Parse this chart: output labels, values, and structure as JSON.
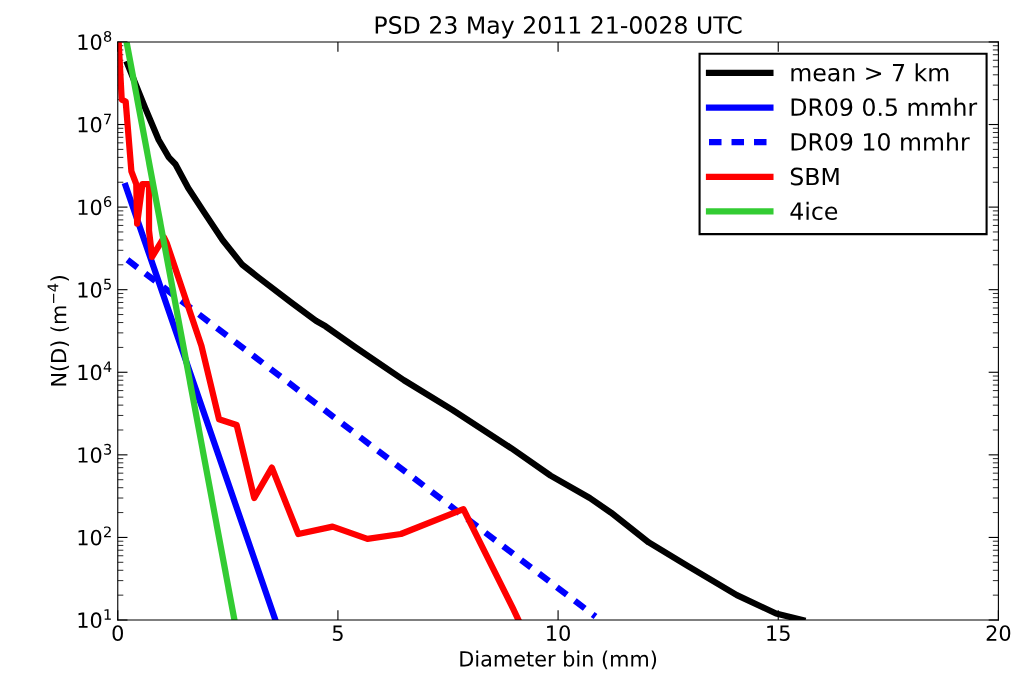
{
  "chart_data": {
    "type": "line",
    "title": "PSD 23 May 2011 21-0028 UTC",
    "xlabel": "Diameter bin (mm)",
    "ylabel": "N(D) (m$^{−4}$)",
    "log": "y",
    "xlim": [
      0,
      20
    ],
    "xticks": [
      0,
      5,
      10,
      15,
      20
    ],
    "ylim": [
      10,
      100000000
    ],
    "yticks": [
      {
        "value": 10,
        "label": "10$^{1}$"
      },
      {
        "value": 100,
        "label": "10$^{2}$"
      },
      {
        "value": 1000,
        "label": "10$^{3}$"
      },
      {
        "value": 10000,
        "label": "10$^{4}$"
      },
      {
        "value": 100000,
        "label": "10$^{5}$"
      },
      {
        "value": 1000000,
        "label": "10$^{6}$"
      },
      {
        "value": 10000000,
        "label": "10$^{7}$"
      },
      {
        "value": 100000000,
        "label": "10$^{8}$"
      }
    ],
    "grid": false,
    "legend": "top right",
    "marker": "none",
    "series": [
      {
        "name": "mean > 7 km",
        "color": "#000000",
        "line_style": "solid",
        "x": [
          0.22,
          0.62,
          0.93,
          1.16,
          1.31,
          1.6,
          1.94,
          2.38,
          2.83,
          3.2,
          3.94,
          4.5,
          4.72,
          5.4,
          6.5,
          7.6,
          8.94,
          9.83,
          10.72,
          11.2,
          12.06,
          12.95,
          14.06,
          14.95,
          15.55
        ],
        "values": [
          54000000,
          16000000,
          6500000,
          4000000,
          3300000,
          1700000,
          900000,
          400000,
          200000,
          140000,
          70000,
          42000,
          36000,
          20000,
          8000,
          3500,
          1200,
          560,
          300,
          200,
          87,
          45,
          20,
          12,
          10
        ]
      },
      {
        "name": "DR09 0.5 mmhr",
        "color": "#0000ff",
        "line_style": "solid",
        "x": [
          0.18,
          3.58
        ],
        "values": [
          1800000,
          10
        ]
      },
      {
        "name": "DR09 10 mmhr",
        "color": "#0000ff",
        "line_style": "dashed",
        "x": [
          0.22,
          10.85
        ],
        "values": [
          230000,
          11
        ]
      },
      {
        "name": "SBM",
        "color": "#ff0000",
        "line_style": "solid",
        "x": [
          0.02,
          0.09,
          0.18,
          0.31,
          0.42,
          0.44,
          0.56,
          0.71,
          0.71,
          0.78,
          1.05,
          1.11,
          1.9,
          2.3,
          2.7,
          3.1,
          3.5,
          4.1,
          4.88,
          5.67,
          6.43,
          7.85,
          8.97,
          9.1
        ],
        "values": [
          100000000,
          20000000,
          19000000,
          2700000,
          1900000,
          630000,
          1900000,
          1900000,
          520000,
          250000,
          430000,
          370000,
          21000,
          2700,
          2300,
          300,
          700,
          110,
          135,
          96,
          110,
          220,
          14,
          10
        ]
      },
      {
        "name": "4ice",
        "color": "#33cc33",
        "line_style": "solid",
        "x": [
          0.2,
          2.65
        ],
        "values": [
          100000000,
          10
        ]
      }
    ]
  }
}
